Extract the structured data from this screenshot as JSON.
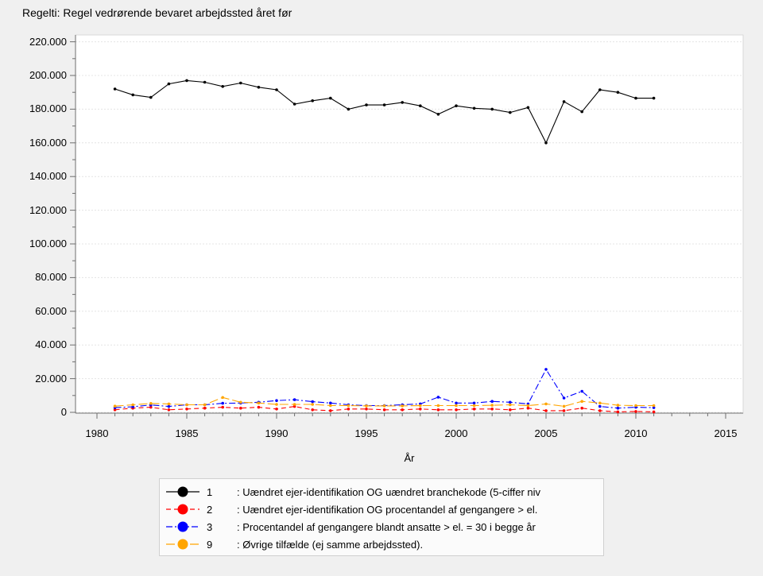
{
  "title": "Regelti: Regel vedrørende bevaret arbejdssted året før",
  "chart_data": {
    "type": "line",
    "title": "Regelti: Regel vedrørende bevaret arbejdssted året før",
    "xlabel": "År",
    "ylabel": "",
    "grid": "horizontal",
    "legend_position": "bottom",
    "x_axis": {
      "label": "År",
      "min": 1980,
      "max": 2015,
      "major_ticks": [
        1980,
        1985,
        1990,
        1995,
        2000,
        2005,
        2010,
        2015
      ],
      "minor_step": 1
    },
    "y_axis": {
      "min": 0,
      "max": 220000,
      "major_step": 20000,
      "minor_step": 10000,
      "tick_labels": [
        "0",
        "20.000",
        "40.000",
        "60.000",
        "80.000",
        "100.000",
        "120.000",
        "140.000",
        "160.000",
        "180.000",
        "200.000",
        "220.000"
      ]
    },
    "x": [
      1981,
      1982,
      1983,
      1984,
      1985,
      1986,
      1987,
      1988,
      1989,
      1990,
      1991,
      1992,
      1993,
      1994,
      1995,
      1996,
      1997,
      1998,
      1999,
      2000,
      2001,
      2002,
      2003,
      2004,
      2005,
      2006,
      2007,
      2008,
      2009,
      2010,
      2011
    ],
    "series": [
      {
        "name": "1",
        "label": ": Uændret ejer-identifikation OG uændret branchekode (5-ciffer niv",
        "color": "#000000",
        "dash": "solid",
        "values": [
          192000,
          188500,
          187000,
          195000,
          197000,
          196000,
          193500,
          195500,
          193000,
          191500,
          183000,
          185000,
          186500,
          180000,
          182500,
          182500,
          184000,
          182000,
          177000,
          182000,
          180500,
          180000,
          178000,
          181000,
          160000,
          184500,
          178500,
          191500,
          190000,
          186500,
          186500
        ]
      },
      {
        "name": "2",
        "label": ": Uændret ejer-identifikation OG procentandel af gengangere > el.",
        "color": "#ff0000",
        "dash": "dashed",
        "values": [
          1500,
          2500,
          3000,
          1500,
          2000,
          2500,
          3000,
          2500,
          3000,
          2000,
          3500,
          1500,
          1000,
          2000,
          2000,
          1500,
          1500,
          2000,
          1500,
          1500,
          2000,
          2000,
          1500,
          2500,
          1000,
          1000,
          2500,
          1000,
          300,
          500,
          300
        ]
      },
      {
        "name": "3",
        "label": ": Procentandel af gengangere blandt ansatte > el. = 30 i begge år",
        "color": "#0000ff",
        "dash": "dashdot",
        "values": [
          2800,
          3300,
          4400,
          3500,
          4500,
          4500,
          5400,
          5500,
          6000,
          7000,
          7500,
          6300,
          5500,
          4500,
          4000,
          4000,
          4500,
          5000,
          9000,
          5500,
          5500,
          6500,
          6000,
          5000,
          25500,
          8500,
          12500,
          3500,
          2500,
          3000,
          2800
        ]
      },
      {
        "name": "9",
        "label": ": Øvrige tilfælde (ej samme arbejdssted).",
        "color": "#ffa500",
        "dash": "longdash",
        "values": [
          3700,
          4500,
          5300,
          5000,
          4500,
          4500,
          8800,
          6000,
          5500,
          4700,
          4700,
          4700,
          4000,
          4000,
          3800,
          3800,
          3800,
          4000,
          4000,
          4000,
          4000,
          4200,
          4500,
          4000,
          5000,
          3600,
          6500,
          5500,
          4200,
          4000,
          4000
        ]
      }
    ]
  }
}
